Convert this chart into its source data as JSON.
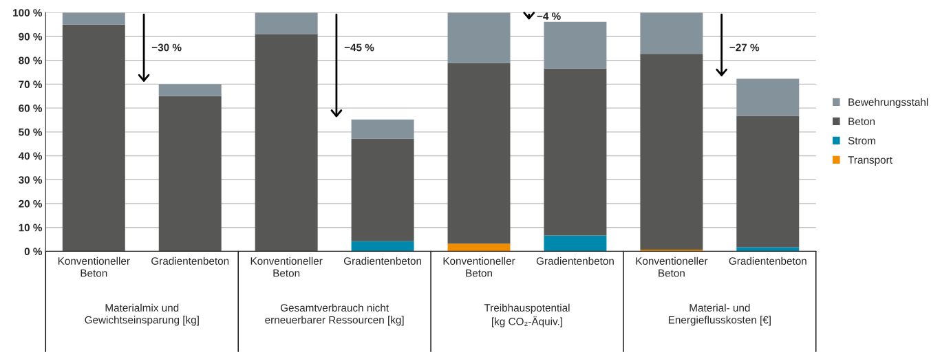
{
  "chart_data": {
    "type": "bar",
    "stacked": true,
    "categories": [
      "Konventioneller\nBeton",
      "Gradientenbeton",
      "Konventioneller\nBeton",
      "Gradientenbeton",
      "Konventioneller\nBeton",
      "Gradientenbeton",
      "Konventioneller\nBeton",
      "Gradientenbeton"
    ],
    "series": [
      {
        "name": "Transport",
        "color": "#f28c00",
        "values": [
          0,
          0,
          0,
          0,
          3.2,
          0,
          0.7,
          0
        ]
      },
      {
        "name": "Strom",
        "color": "#0089ad",
        "values": [
          0,
          0,
          0,
          4.2,
          0,
          6.6,
          0,
          1.7
        ]
      },
      {
        "name": "Beton",
        "color": "#575756",
        "values": [
          95,
          65,
          91,
          43,
          75.7,
          70,
          82,
          55
        ]
      },
      {
        "name": "Bewehrungsstahl",
        "color": "#84929b",
        "values": [
          5,
          5,
          9,
          8,
          21.1,
          19.5,
          17.3,
          15.6
        ]
      }
    ],
    "ylim": [
      0,
      100
    ],
    "yticks": [
      {
        "value": 0,
        "label": "0 %"
      },
      {
        "value": 10,
        "label": "10 %"
      },
      {
        "value": 20,
        "label": "20 %"
      },
      {
        "value": 30,
        "label": "30 %"
      },
      {
        "value": 40,
        "label": "40 %"
      },
      {
        "value": 50,
        "label": "50 %"
      },
      {
        "value": 60,
        "label": "60 %"
      },
      {
        "value": 70,
        "label": "70 %"
      },
      {
        "value": 80,
        "label": "80 %"
      },
      {
        "value": 90,
        "label": "90 %"
      },
      {
        "value": 100,
        "label": "100 %"
      }
    ],
    "grid": "y",
    "legend": "right",
    "annotations": [
      "−30 %",
      "−45 %",
      "−4 %",
      "−27 %",
      "Materialmix und\nGewichtseinsparung [kg]",
      "Gesamtverbrauch nicht\nerneuerbarer Ressourcen [kg]",
      "Treibhauspotential\n[kg CO₂-Äquiv.]",
      "Material- und\nEnergieflusskosten [€]"
    ]
  }
}
